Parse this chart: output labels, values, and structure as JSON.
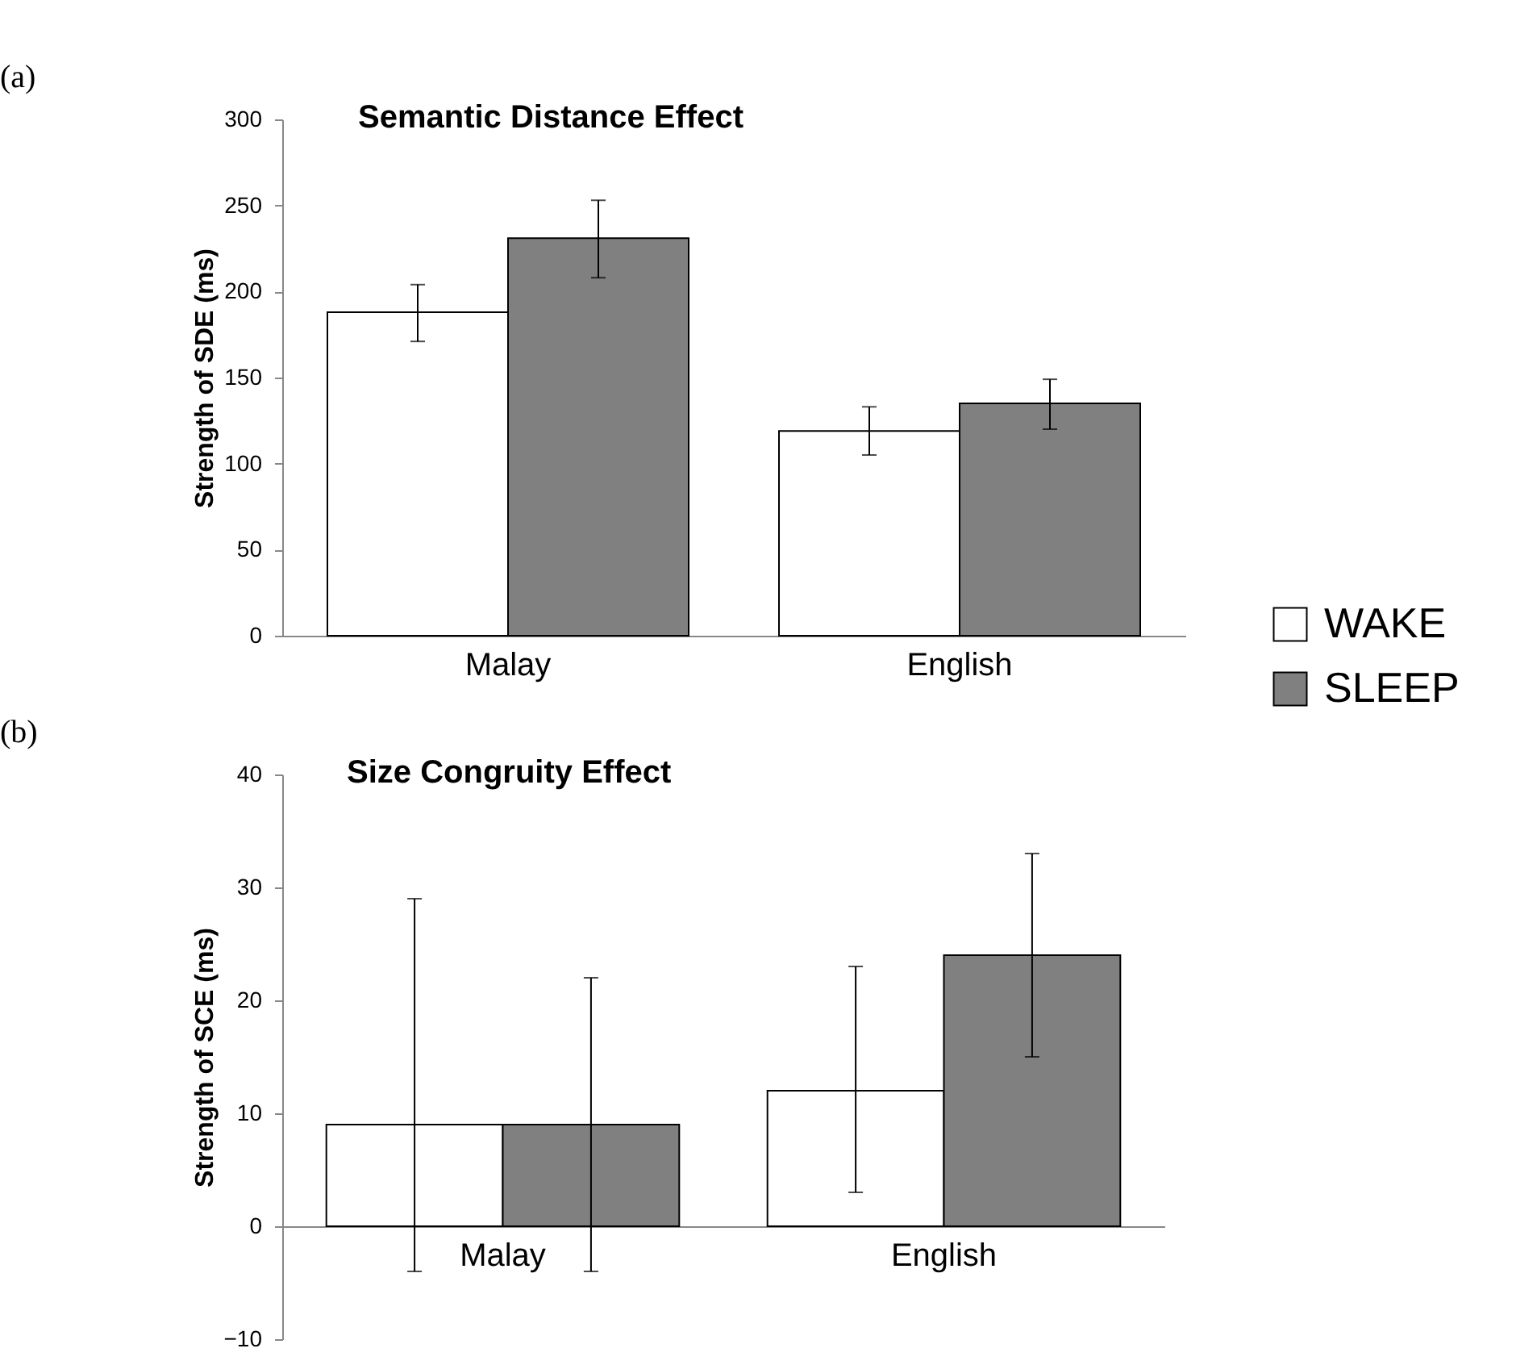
{
  "chart_data": [
    {
      "type": "bar",
      "title": "Semantic Distance Effect",
      "ylabel": "Strength of SDE (ms)",
      "categories": [
        "Malay",
        "English"
      ],
      "series": [
        {
          "name": "WAKE",
          "color": "#ffffff",
          "values": [
            188,
            119
          ],
          "errors": [
            [
              171,
              204
            ],
            [
              105,
              133
            ]
          ]
        },
        {
          "name": "SLEEP",
          "color": "#808080",
          "values": [
            231,
            135
          ],
          "errors": [
            [
              208,
              253
            ],
            [
              120,
              149
            ]
          ]
        }
      ],
      "ylim": [
        0,
        300
      ],
      "yticks": [
        0,
        50,
        100,
        150,
        200,
        250,
        300
      ],
      "grid": false,
      "legend": "right",
      "annotations": [
        "(a)"
      ]
    },
    {
      "type": "bar",
      "title": "Size Congruity Effect",
      "ylabel": "Strength of SCE (ms)",
      "categories": [
        "Malay",
        "English"
      ],
      "series": [
        {
          "color": "#ffffff",
          "values": [
            9,
            12
          ],
          "errors": [
            [
              -4,
              29
            ],
            [
              3,
              23
            ]
          ]
        },
        {
          "color": "#808080",
          "values": [
            9,
            24
          ],
          "errors": [
            [
              -4,
              22
            ],
            [
              15,
              33
            ]
          ]
        }
      ],
      "ylim": [
        -10,
        40
      ],
      "yticks": [
        -10,
        0,
        10,
        20,
        30,
        40
      ],
      "grid": false,
      "legend": false,
      "annotations": [
        "(b)"
      ]
    }
  ]
}
